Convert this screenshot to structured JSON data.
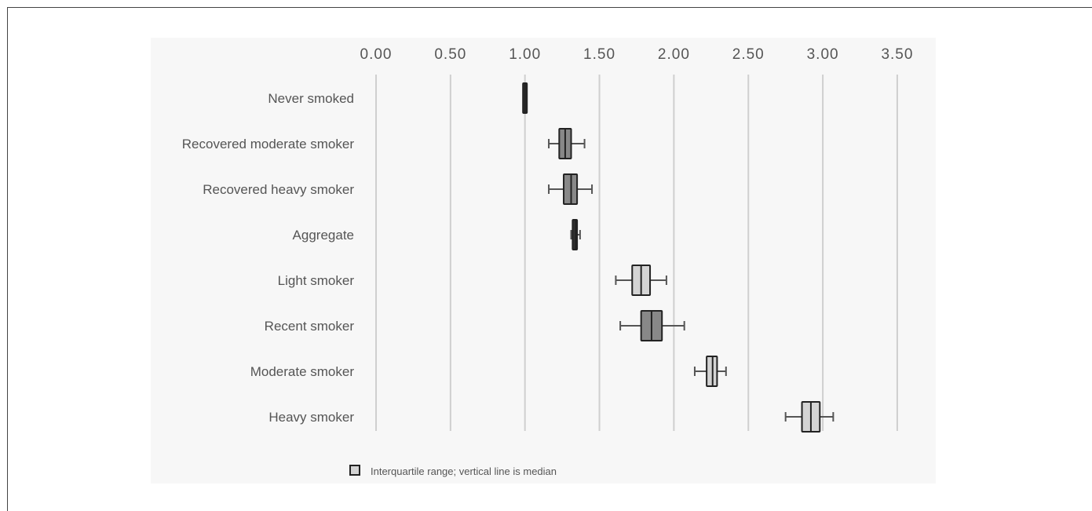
{
  "chart_data": {
    "type": "boxplot",
    "orientation": "horizontal",
    "xlim": [
      0,
      3.5
    ],
    "ticks": [
      "0.00",
      "0.50",
      "1.00",
      "1.50",
      "2.00",
      "2.50",
      "3.00",
      "3.50"
    ],
    "tick_values": [
      0,
      0.5,
      1.0,
      1.5,
      2.0,
      2.5,
      3.0,
      3.5
    ],
    "grid": true,
    "categories": [
      "Never smoked",
      "Recovered moderate smoker",
      "Recovered heavy smoker",
      "Aggregate",
      "Light smoker",
      "Recent smoker",
      "Moderate smoker",
      "Heavy smoker"
    ],
    "boxes": [
      {
        "label": "Never smoked",
        "whisker_low": 1.0,
        "q1": 1.0,
        "median": 1.0,
        "q3": 1.0,
        "whisker_high": 1.0,
        "fill": "#333333"
      },
      {
        "label": "Recovered moderate smoker",
        "whisker_low": 1.16,
        "q1": 1.23,
        "median": 1.27,
        "q3": 1.31,
        "whisker_high": 1.4,
        "fill": "#888888"
      },
      {
        "label": "Recovered heavy smoker",
        "whisker_low": 1.16,
        "q1": 1.26,
        "median": 1.31,
        "q3": 1.35,
        "whisker_high": 1.45,
        "fill": "#888888"
      },
      {
        "label": "Aggregate",
        "whisker_low": 1.31,
        "q1": 1.32,
        "median": 1.34,
        "q3": 1.35,
        "whisker_high": 1.37,
        "fill": "#333333"
      },
      {
        "label": "Light smoker",
        "whisker_low": 1.61,
        "q1": 1.72,
        "median": 1.78,
        "q3": 1.84,
        "whisker_high": 1.95,
        "fill": "#d4d4d4"
      },
      {
        "label": "Recent smoker",
        "whisker_low": 1.64,
        "q1": 1.78,
        "median": 1.85,
        "q3": 1.92,
        "whisker_high": 2.07,
        "fill": "#888888"
      },
      {
        "label": "Moderate smoker",
        "whisker_low": 2.14,
        "q1": 2.22,
        "median": 2.26,
        "q3": 2.29,
        "whisker_high": 2.35,
        "fill": "#d4d4d4"
      },
      {
        "label": "Heavy smoker",
        "whisker_low": 2.75,
        "q1": 2.86,
        "median": 2.92,
        "q3": 2.98,
        "whisker_high": 3.07,
        "fill": "#d4d4d4"
      }
    ],
    "legend": {
      "label": "Interquartile range; vertical line is median",
      "position": "bottom-left"
    }
  },
  "colors": {
    "grid": "#cfcfcf",
    "text": "#555555",
    "box_stroke": "#222222",
    "whisker": "#555555"
  }
}
